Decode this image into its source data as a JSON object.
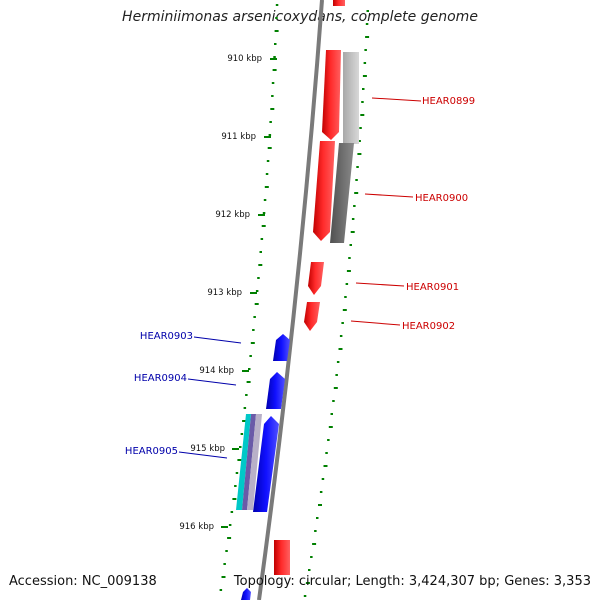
{
  "title": "Herminiimonas arsenicoxydans, complete genome",
  "footer": {
    "accession": "Accession: NC_009138",
    "topology": "Topology: circular",
    "length": "Length: 3,424,307 bp",
    "genes": "Genes: 3,353"
  },
  "scale_labels": [
    "910 kbp",
    "911 kbp",
    "912 kbp",
    "913 kbp",
    "914 kbp",
    "915 kbp",
    "916 kbp"
  ],
  "genes": {
    "forward": [
      "HEAR0899",
      "HEAR0900",
      "HEAR0901",
      "HEAR0902"
    ],
    "reverse": [
      "HEAR0903",
      "HEAR0904",
      "HEAR0905"
    ]
  },
  "colors": {
    "forward_strand": "#ff0000",
    "reverse_strand": "#0000ff",
    "forward_label": "#cc0000",
    "reverse_label": "#0000aa",
    "backbone": "#808080",
    "gc_dots": "#008000",
    "gray_feature": "#707070",
    "cyan_feature": "#00c0c0",
    "purple_feature": "#7060b0"
  }
}
